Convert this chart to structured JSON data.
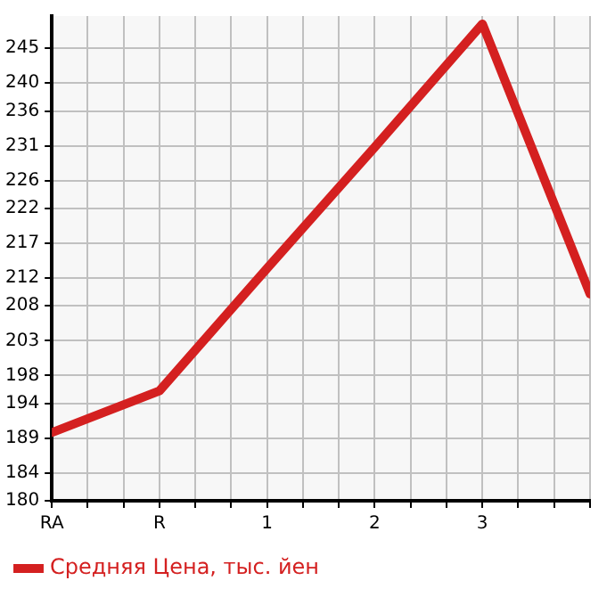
{
  "chart_data": {
    "type": "line",
    "categories": [
      "RA",
      "R",
      "1",
      "2",
      "3",
      null
    ],
    "series": [
      {
        "name": "Средняя Цена, тыс. йен",
        "color": "#d42020",
        "values": [
          189.8,
          195.8,
          213.4,
          230.8,
          248.5,
          209.7
        ]
      }
    ],
    "ylim": [
      180,
      249.64
    ],
    "yticks": [
      180,
      184,
      189,
      194,
      198,
      203,
      208,
      212,
      217,
      222,
      226,
      231,
      236,
      240,
      245
    ],
    "grid": true,
    "legend": "bottom left",
    "marker": "none",
    "line_style": "solid"
  }
}
